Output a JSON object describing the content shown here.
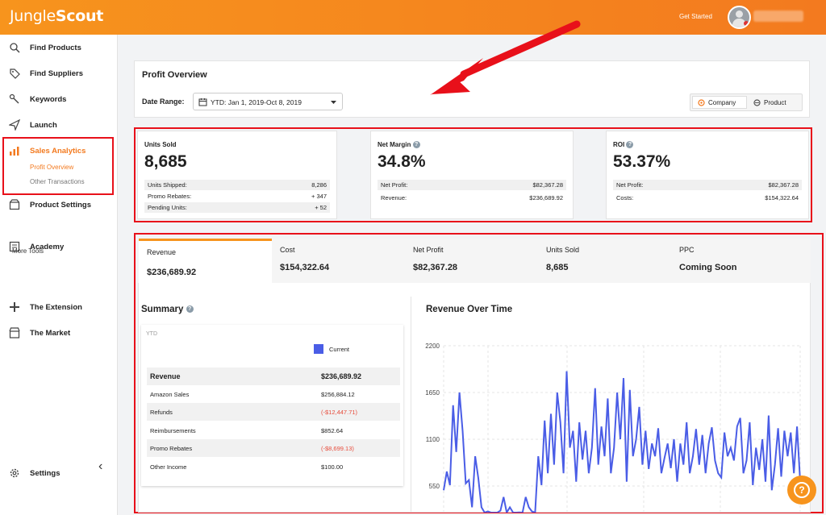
{
  "header": {
    "logo_light": "Jungle",
    "logo_bold": "Scout",
    "get_started": "Get Started"
  },
  "sidebar": {
    "items": [
      {
        "label": "Find Products",
        "icon": "search-icon"
      },
      {
        "label": "Find Suppliers",
        "icon": "tag-icon"
      },
      {
        "label": "Keywords",
        "icon": "key-icon"
      },
      {
        "label": "Launch",
        "icon": "send-icon"
      },
      {
        "label": "Sales Analytics",
        "icon": "bar-chart-icon",
        "active": true
      },
      {
        "label": "Product Settings",
        "icon": "box-icon"
      },
      {
        "label": "Academy",
        "icon": "book-icon"
      },
      {
        "label": "The Extension",
        "icon": "puzzle-icon"
      },
      {
        "label": "The Market",
        "icon": "store-icon"
      },
      {
        "label": "Settings",
        "icon": "gear-icon"
      }
    ],
    "sub_items": [
      "Profit Overview",
      "Other Transactions"
    ],
    "more_tools": "More Tools",
    "collapse": "‹"
  },
  "overview": {
    "title": "Profit Overview",
    "date_label": "Date Range:",
    "date_value": "YTD: Jan 1, 2019-Oct 8, 2019",
    "toggle": {
      "company": "Company",
      "product": "Product"
    }
  },
  "stats": {
    "units": {
      "label": "Units Sold",
      "value": "8,685",
      "rows": [
        {
          "k": "Units Shipped:",
          "v": "8,286"
        },
        {
          "k": "Promo Rebates:",
          "v": "+ 347"
        },
        {
          "k": "Pending Units:",
          "v": "+ 52"
        }
      ]
    },
    "margin": {
      "label": "Net Margin",
      "value": "34.8%",
      "rows": [
        {
          "k": "Net Profit:",
          "v": "$82,367.28"
        },
        {
          "k": "Revenue:",
          "v": "$236,689.92"
        }
      ]
    },
    "roi": {
      "label": "ROI",
      "value": "53.37%",
      "rows": [
        {
          "k": "Net Profit:",
          "v": "$82,367.28"
        },
        {
          "k": "Costs:",
          "v": "$154,322.64"
        }
      ]
    }
  },
  "tabs": [
    {
      "label": "Revenue",
      "value": "$236,689.92"
    },
    {
      "label": "Cost",
      "value": "$154,322.64"
    },
    {
      "label": "Net Profit",
      "value": "$82,367.28"
    },
    {
      "label": "Units Sold",
      "value": "8,685"
    },
    {
      "label": "PPC",
      "value": "Coming Soon"
    }
  ],
  "summary": {
    "title": "Summary",
    "period": "YTD",
    "legend": "Current",
    "legend_color": "#4a5de6",
    "rows": [
      {
        "name": "Revenue",
        "amount": "$236,689.92"
      },
      {
        "name": "Amazon Sales",
        "amount": "$256,884.12"
      },
      {
        "name": "Refunds",
        "amount": "(-$12,447.71)"
      },
      {
        "name": "Reimbursements",
        "amount": "$852.64"
      },
      {
        "name": "Promo Rebates",
        "amount": "(-$8,699.13)"
      },
      {
        "name": "Other Income",
        "amount": "$100.00"
      }
    ]
  },
  "chart_title": "Revenue Over Time",
  "chart_data": {
    "type": "line",
    "title": "Revenue Over Time",
    "ylim": [
      0,
      2200
    ],
    "yticks": [
      "2200",
      "1650",
      "1100",
      "550"
    ],
    "series": [
      {
        "values": [
          500,
          720,
          560,
          1500,
          950,
          1650,
          1200,
          580,
          620,
          300,
          900,
          640,
          300,
          180,
          250,
          160,
          220,
          180,
          260,
          420,
          160,
          300,
          200,
          180,
          240,
          150,
          420,
          300,
          250,
          200,
          900,
          560,
          1320,
          700,
          1400,
          800,
          1650,
          1300,
          700,
          1900,
          1000,
          1200,
          600,
          1300,
          860,
          1200,
          700,
          1000,
          1700,
          800,
          1250,
          900,
          1580,
          700,
          1000,
          1650,
          1100,
          1820,
          600,
          1680,
          900,
          1100,
          1480,
          800,
          1200,
          750,
          1050,
          900,
          1230,
          700,
          880,
          1050,
          760,
          1100,
          600,
          1050,
          800,
          1300,
          700,
          900,
          1220,
          800,
          1150,
          700,
          1050,
          1240,
          850,
          700,
          650,
          1180,
          900,
          1000,
          850,
          1250,
          1350,
          700,
          850,
          1300,
          560,
          1000,
          740,
          1100,
          600,
          1380,
          500,
          800,
          1230,
          660,
          1200,
          900,
          1180,
          700,
          1250,
          600
        ]
      }
    ]
  }
}
